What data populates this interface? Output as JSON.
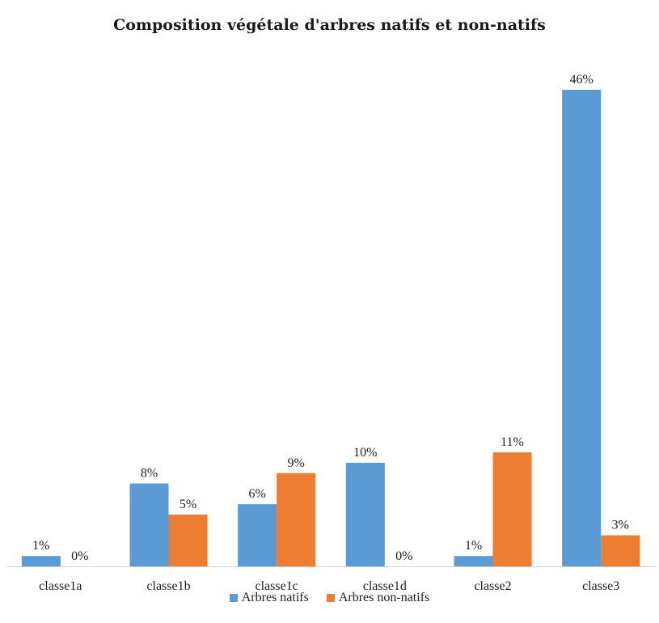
{
  "chart_data": {
    "type": "bar",
    "title": "Composition végétale d'arbres natifs et non-natifs",
    "categories": [
      "classe1a",
      "classe1b",
      "classe1c",
      "classe1d",
      "classe2",
      "classe3"
    ],
    "series": [
      {
        "name": "Arbres natifs",
        "color": "#5B9BD5",
        "values": [
          1,
          8,
          6,
          10,
          1,
          46
        ],
        "labels": [
          "1%",
          "8%",
          "6%",
          "10%",
          "1%",
          "46%"
        ]
      },
      {
        "name": "Arbres non-natifs",
        "color": "#ED7D31",
        "values": [
          0,
          5,
          9,
          0,
          11,
          3
        ],
        "labels": [
          "0%",
          "5%",
          "9%",
          "0%",
          "11%",
          "3%"
        ]
      }
    ],
    "unit": "%",
    "ylim": [
      0,
      46
    ],
    "grid": false,
    "legend_position": "bottom"
  }
}
